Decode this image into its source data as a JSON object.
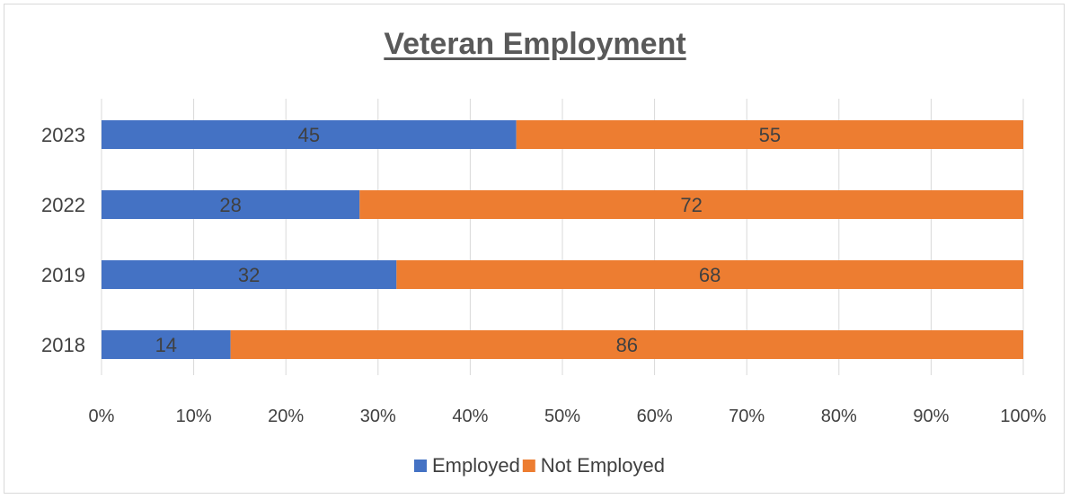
{
  "chart_data": {
    "type": "bar",
    "orientation": "horizontal",
    "stacking": "percent",
    "title": "Veteran Employment",
    "categories": [
      "2023",
      "2022",
      "2019",
      "2018"
    ],
    "series": [
      {
        "name": "Employed",
        "color": "#4472C4",
        "values": [
          45,
          28,
          32,
          14
        ]
      },
      {
        "name": "Not Employed",
        "color": "#ED7D31",
        "values": [
          55,
          72,
          68,
          86
        ]
      }
    ],
    "x_ticks": [
      "0%",
      "10%",
      "20%",
      "30%",
      "40%",
      "50%",
      "60%",
      "70%",
      "80%",
      "90%",
      "100%"
    ],
    "xlim": [
      0,
      100
    ],
    "grid": "vertical",
    "legend": "bottom"
  }
}
